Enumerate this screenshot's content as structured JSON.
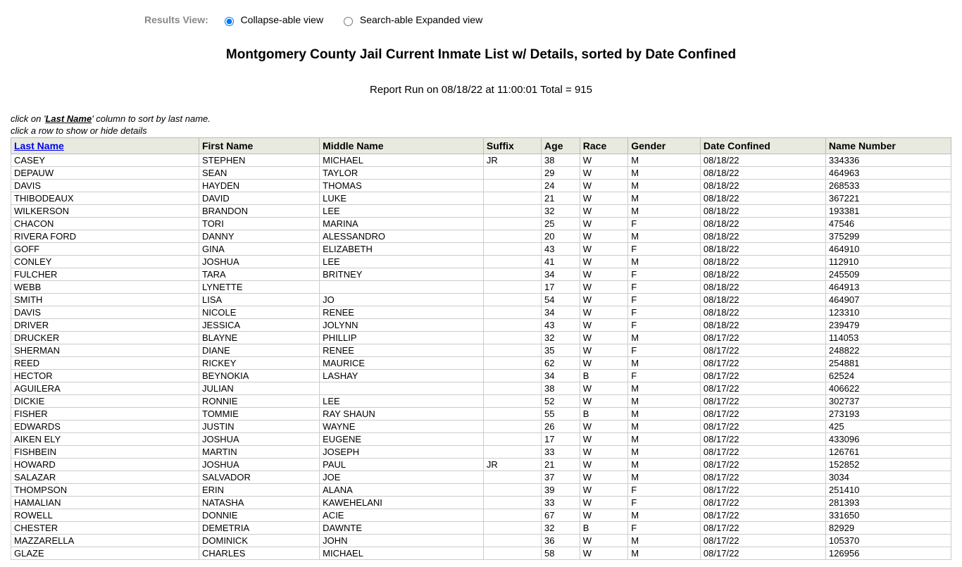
{
  "viewToggle": {
    "label": "Results View:",
    "options": [
      {
        "label": "Collapse-able view",
        "checked": true
      },
      {
        "label": "Search-able Expanded view",
        "checked": false
      }
    ]
  },
  "title": "Montgomery County Jail Current Inmate List w/ Details, sorted by Date Confined",
  "reportRun": "Report Run on 08/18/22 at 11:00:01 Total = 915",
  "hint1_pre": "click on '",
  "hint1_col": "Last Name",
  "hint1_post": "' column to sort by last name.",
  "hint2": "click a row to show or hide details",
  "columns": [
    "Last Name",
    "First Name",
    "Middle Name",
    "Suffix",
    "Age",
    "Race",
    "Gender",
    "Date Confined",
    "Name Number"
  ],
  "rows": [
    [
      "CASEY",
      "STEPHEN",
      "MICHAEL",
      "JR",
      "38",
      "W",
      "M",
      "08/18/22",
      "334336"
    ],
    [
      "DEPAUW",
      "SEAN",
      "TAYLOR",
      "",
      "29",
      "W",
      "M",
      "08/18/22",
      "464963"
    ],
    [
      "DAVIS",
      "HAYDEN",
      "THOMAS",
      "",
      "24",
      "W",
      "M",
      "08/18/22",
      "268533"
    ],
    [
      "THIBODEAUX",
      "DAVID",
      "LUKE",
      "",
      "21",
      "W",
      "M",
      "08/18/22",
      "367221"
    ],
    [
      "WILKERSON",
      "BRANDON",
      "LEE",
      "",
      "32",
      "W",
      "M",
      "08/18/22",
      "193381"
    ],
    [
      "CHACON",
      "TORI",
      "MARINA",
      "",
      "25",
      "W",
      "F",
      "08/18/22",
      "47546"
    ],
    [
      "RIVERA FORD",
      "DANNY",
      "ALESSANDRO",
      "",
      "20",
      "W",
      "M",
      "08/18/22",
      "375299"
    ],
    [
      "GOFF",
      "GINA",
      "ELIZABETH",
      "",
      "43",
      "W",
      "F",
      "08/18/22",
      "464910"
    ],
    [
      "CONLEY",
      "JOSHUA",
      "LEE",
      "",
      "41",
      "W",
      "M",
      "08/18/22",
      "112910"
    ],
    [
      "FULCHER",
      "TARA",
      "BRITNEY",
      "",
      "34",
      "W",
      "F",
      "08/18/22",
      "245509"
    ],
    [
      "WEBB",
      "LYNETTE",
      "",
      "",
      "17",
      "W",
      "F",
      "08/18/22",
      "464913"
    ],
    [
      "SMITH",
      "LISA",
      "JO",
      "",
      "54",
      "W",
      "F",
      "08/18/22",
      "464907"
    ],
    [
      "DAVIS",
      "NICOLE",
      "RENEE",
      "",
      "34",
      "W",
      "F",
      "08/18/22",
      "123310"
    ],
    [
      "DRIVER",
      "JESSICA",
      "JOLYNN",
      "",
      "43",
      "W",
      "F",
      "08/18/22",
      "239479"
    ],
    [
      "DRUCKER",
      "BLAYNE",
      "PHILLIP",
      "",
      "32",
      "W",
      "M",
      "08/17/22",
      "114053"
    ],
    [
      "SHERMAN",
      "DIANE",
      "RENEE",
      "",
      "35",
      "W",
      "F",
      "08/17/22",
      "248822"
    ],
    [
      "REED",
      "RICKEY",
      "MAURICE",
      "",
      "62",
      "W",
      "M",
      "08/17/22",
      "254881"
    ],
    [
      "HECTOR",
      "BEYNOKIA",
      "LASHAY",
      "",
      "34",
      "B",
      "F",
      "08/17/22",
      "62524"
    ],
    [
      "AGUILERA",
      "JULIAN",
      "",
      "",
      "38",
      "W",
      "M",
      "08/17/22",
      "406622"
    ],
    [
      "DICKIE",
      "RONNIE",
      "LEE",
      "",
      "52",
      "W",
      "M",
      "08/17/22",
      "302737"
    ],
    [
      "FISHER",
      "TOMMIE",
      "RAY SHAUN",
      "",
      "55",
      "B",
      "M",
      "08/17/22",
      "273193"
    ],
    [
      "EDWARDS",
      "JUSTIN",
      "WAYNE",
      "",
      "26",
      "W",
      "M",
      "08/17/22",
      "425"
    ],
    [
      "AIKEN ELY",
      "JOSHUA",
      "EUGENE",
      "",
      "17",
      "W",
      "M",
      "08/17/22",
      "433096"
    ],
    [
      "FISHBEIN",
      "MARTIN",
      "JOSEPH",
      "",
      "33",
      "W",
      "M",
      "08/17/22",
      "126761"
    ],
    [
      "HOWARD",
      "JOSHUA",
      "PAUL",
      "JR",
      "21",
      "W",
      "M",
      "08/17/22",
      "152852"
    ],
    [
      "SALAZAR",
      "SALVADOR",
      "JOE",
      "",
      "37",
      "W",
      "M",
      "08/17/22",
      "3034"
    ],
    [
      "THOMPSON",
      "ERIN",
      "ALANA",
      "",
      "39",
      "W",
      "F",
      "08/17/22",
      "251410"
    ],
    [
      "HAMALIAN",
      "NATASHA",
      "KAWEHELANI",
      "",
      "33",
      "W",
      "F",
      "08/17/22",
      "281393"
    ],
    [
      "ROWELL",
      "DONNIE",
      "ACIE",
      "",
      "67",
      "W",
      "M",
      "08/17/22",
      "331650"
    ],
    [
      "CHESTER",
      "DEMETRIA",
      "DAWNTE",
      "",
      "32",
      "B",
      "F",
      "08/17/22",
      "82929"
    ],
    [
      "MAZZARELLA",
      "DOMINICK",
      "JOHN",
      "",
      "36",
      "W",
      "M",
      "08/17/22",
      "105370"
    ],
    [
      "GLAZE",
      "CHARLES",
      "MICHAEL",
      "",
      "58",
      "W",
      "M",
      "08/17/22",
      "126956"
    ]
  ]
}
